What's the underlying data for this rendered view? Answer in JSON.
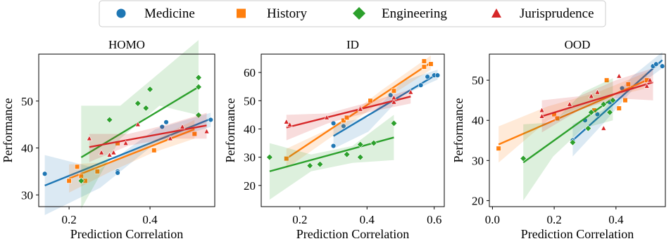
{
  "legend": {
    "placement": "top-center",
    "entries": [
      {
        "label": "Medicine",
        "color": "#1f77b4",
        "marker": "circle"
      },
      {
        "label": "History",
        "color": "#ff7f0e",
        "marker": "square"
      },
      {
        "label": "Engineering",
        "color": "#2ca02c",
        "marker": "diamond"
      },
      {
        "label": "Jurisprudence",
        "color": "#d62728",
        "marker": "triangle"
      }
    ]
  },
  "chart_data": [
    {
      "type": "scatter",
      "title": "HOMO",
      "xlabel": "Prediction Correlation",
      "ylabel": "Performance",
      "xlim": [
        0.125,
        0.56
      ],
      "ylim": [
        27.5,
        60
      ],
      "xticks": [
        0.2,
        0.4
      ],
      "yticks": [
        30,
        40,
        50
      ],
      "xtick_labels": [
        "0.2",
        "0.4"
      ],
      "ytick_labels": [
        "30",
        "40",
        "50"
      ],
      "grid": false,
      "series": [
        {
          "name": "Medicine",
          "points": [
            [
              0.14,
              34.5
            ],
            [
              0.32,
              35
            ],
            [
              0.32,
              34.7
            ],
            [
              0.43,
              44.5
            ],
            [
              0.44,
              45.5
            ],
            [
              0.55,
              46
            ]
          ],
          "fit": {
            "x": [
              0.14,
              0.55
            ],
            "y": [
              32,
              46.2
            ]
          },
          "band_upper": [
            38.5,
            35.5,
            44,
            47.5
          ],
          "band_lower": [
            25.7,
            31.5,
            41,
            44.5
          ]
        },
        {
          "name": "History",
          "points": [
            [
              0.2,
              33
            ],
            [
              0.22,
              36
            ],
            [
              0.23,
              34
            ],
            [
              0.24,
              33
            ],
            [
              0.27,
              35
            ],
            [
              0.32,
              41
            ],
            [
              0.41,
              39.5
            ],
            [
              0.51,
              43
            ]
          ],
          "fit": {
            "x": [
              0.2,
              0.51
            ],
            "y": [
              33.5,
              44
            ]
          },
          "band_upper": [
            36.5,
            37,
            41.5,
            46
          ],
          "band_lower": [
            30.5,
            35,
            39,
            42
          ]
        },
        {
          "name": "Engineering",
          "points": [
            [
              0.23,
              33
            ],
            [
              0.3,
              46
            ],
            [
              0.37,
              49.5
            ],
            [
              0.39,
              48.5
            ],
            [
              0.4,
              52.5
            ],
            [
              0.52,
              55
            ],
            [
              0.52,
              47
            ],
            [
              0.52,
              53
            ]
          ],
          "fit": {
            "x": [
              0.23,
              0.52
            ],
            "y": [
              38,
              53
            ]
          },
          "band_upper": [
            49,
            49,
            56,
            63
          ],
          "band_lower": [
            27,
            42,
            49,
            47
          ]
        },
        {
          "name": "Jurisprudence",
          "points": [
            [
              0.25,
              42
            ],
            [
              0.28,
              39
            ],
            [
              0.3,
              38.5
            ],
            [
              0.31,
              39
            ],
            [
              0.34,
              41
            ],
            [
              0.37,
              45
            ],
            [
              0.45,
              42
            ],
            [
              0.48,
              44.5
            ],
            [
              0.54,
              43.5
            ]
          ],
          "fit": {
            "x": [
              0.25,
              0.54
            ],
            "y": [
              40.2,
              44.8
            ]
          },
          "band_upper": [
            43,
            43,
            45,
            47.5
          ],
          "band_lower": [
            37,
            40.5,
            42,
            42
          ]
        }
      ]
    },
    {
      "type": "scatter",
      "title": "ID",
      "xlabel": "Prediction Correlation",
      "ylabel": "Performance",
      "xlim": [
        0.085,
        0.63
      ],
      "ylim": [
        12.5,
        66.5
      ],
      "xticks": [
        0.2,
        0.4,
        0.6
      ],
      "yticks": [
        20,
        30,
        40,
        50,
        60
      ],
      "xtick_labels": [
        "0.2",
        "0.4",
        "0.6"
      ],
      "ytick_labels": [
        "20",
        "30",
        "40",
        "50",
        "60"
      ],
      "grid": false,
      "series": [
        {
          "name": "Medicine",
          "points": [
            [
              0.3,
              34
            ],
            [
              0.3,
              42
            ],
            [
              0.33,
              41
            ],
            [
              0.47,
              52
            ],
            [
              0.56,
              55.5
            ],
            [
              0.58,
              58.5
            ],
            [
              0.6,
              59
            ],
            [
              0.61,
              59
            ]
          ],
          "fit": {
            "x": [
              0.3,
              0.61
            ],
            "y": [
              37.5,
              59.5
            ]
          },
          "band_upper": [
            42,
            44,
            57,
            61
          ],
          "band_lower": [
            33,
            39,
            52,
            57.5
          ]
        },
        {
          "name": "History",
          "points": [
            [
              0.16,
              29.5
            ],
            [
              0.33,
              43
            ],
            [
              0.34,
              44
            ],
            [
              0.41,
              50
            ],
            [
              0.48,
              53.5
            ],
            [
              0.57,
              64
            ],
            [
              0.57,
              62
            ],
            [
              0.59,
              63
            ]
          ],
          "fit": {
            "x": [
              0.16,
              0.59
            ],
            "y": [
              29.5,
              63.5
            ]
          },
          "band_upper": [
            33,
            41,
            54,
            66
          ],
          "band_lower": [
            26,
            38,
            50,
            61
          ]
        },
        {
          "name": "Engineering",
          "points": [
            [
              0.11,
              30
            ],
            [
              0.23,
              27
            ],
            [
              0.26,
              27.5
            ],
            [
              0.34,
              31
            ],
            [
              0.38,
              30
            ],
            [
              0.38,
              34.5
            ],
            [
              0.42,
              35
            ],
            [
              0.48,
              42
            ]
          ],
          "fit": {
            "x": [
              0.11,
              0.48
            ],
            "y": [
              25,
              37
            ]
          },
          "band_upper": [
            35,
            31,
            34,
            45
          ],
          "band_lower": [
            15,
            25,
            28,
            29
          ]
        },
        {
          "name": "Jurisprudence",
          "points": [
            [
              0.16,
              42.5
            ],
            [
              0.17,
              41.5
            ],
            [
              0.28,
              44
            ],
            [
              0.38,
              47.5
            ],
            [
              0.38,
              47
            ],
            [
              0.48,
              51
            ],
            [
              0.48,
              49.5
            ],
            [
              0.53,
              53
            ]
          ],
          "fit": {
            "x": [
              0.16,
              0.53
            ],
            "y": [
              40.5,
              51.5
            ]
          },
          "band_upper": [
            45,
            45.5,
            49.5,
            54
          ],
          "band_lower": [
            36,
            42,
            46,
            49
          ]
        }
      ]
    },
    {
      "type": "scatter",
      "title": "OOD",
      "xlabel": "Prediction Correlation",
      "ylabel": "Performance",
      "xlim": [
        -0.01,
        0.56
      ],
      "ylim": [
        18.5,
        56.5
      ],
      "xticks": [
        0.0,
        0.2,
        0.4
      ],
      "yticks": [
        20,
        30,
        40,
        50
      ],
      "xtick_labels": [
        "0.0",
        "0.2",
        "0.4"
      ],
      "ytick_labels": [
        "20",
        "30",
        "40",
        "50"
      ],
      "grid": false,
      "series": [
        {
          "name": "Medicine",
          "points": [
            [
              0.26,
              35
            ],
            [
              0.3,
              40
            ],
            [
              0.34,
              41.5
            ],
            [
              0.38,
              44.5
            ],
            [
              0.39,
              45
            ],
            [
              0.42,
              48
            ],
            [
              0.52,
              53.5
            ],
            [
              0.53,
              54
            ],
            [
              0.55,
              53.5
            ]
          ],
          "fit": {
            "x": [
              0.26,
              0.55
            ],
            "y": [
              35,
              55
            ]
          },
          "band_upper": [
            39,
            42.5,
            51,
            57
          ],
          "band_lower": [
            31,
            39,
            47.5,
            53
          ]
        },
        {
          "name": "History",
          "points": [
            [
              0.02,
              33
            ],
            [
              0.2,
              41.5
            ],
            [
              0.21,
              40.5
            ],
            [
              0.33,
              42.5
            ],
            [
              0.37,
              50
            ],
            [
              0.41,
              43
            ],
            [
              0.43,
              45
            ],
            [
              0.44,
              49
            ],
            [
              0.5,
              50
            ]
          ],
          "fit": {
            "x": [
              0.02,
              0.5
            ],
            "y": [
              34,
              50
            ]
          },
          "band_upper": [
            38.5,
            43.5,
            47,
            52
          ],
          "band_lower": [
            29.5,
            40,
            45,
            48
          ]
        },
        {
          "name": "Engineering",
          "points": [
            [
              0.1,
              30.5
            ],
            [
              0.26,
              34.5
            ],
            [
              0.31,
              38
            ],
            [
              0.32,
              42
            ],
            [
              0.36,
              44
            ],
            [
              0.38,
              42
            ],
            [
              0.39,
              45
            ]
          ],
          "fit": {
            "x": [
              0.1,
              0.39
            ],
            "y": [
              29.5,
              45.5
            ]
          },
          "band_upper": [
            39,
            39.5,
            47,
            50.5
          ],
          "band_lower": [
            20,
            31,
            38,
            40
          ]
        },
        {
          "name": "Jurisprudence",
          "points": [
            [
              0.16,
              42.5
            ],
            [
              0.16,
              41
            ],
            [
              0.25,
              44
            ],
            [
              0.32,
              46
            ],
            [
              0.34,
              47
            ],
            [
              0.36,
              38
            ],
            [
              0.41,
              51
            ],
            [
              0.5,
              48.5
            ],
            [
              0.51,
              50
            ]
          ],
          "fit": {
            "x": [
              0.16,
              0.52
            ],
            "y": [
              41,
              49.5
            ]
          },
          "band_upper": [
            45,
            46,
            50,
            53
          ],
          "band_lower": [
            37,
            42.5,
            45.5,
            45
          ]
        }
      ]
    }
  ]
}
